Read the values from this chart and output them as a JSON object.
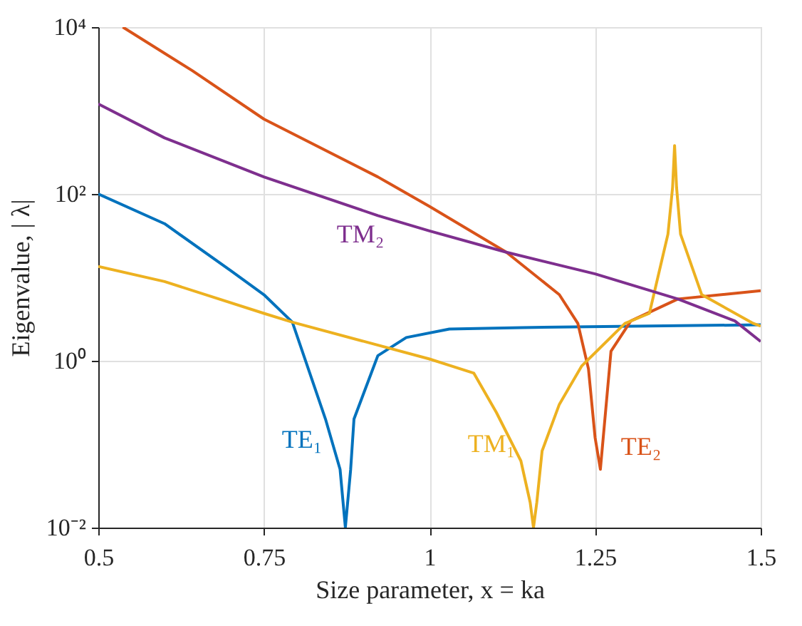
{
  "chart_data": {
    "type": "line",
    "xlabel": "Size parameter,  x = ka",
    "ylabel": "Eigenvalue,  | λ|",
    "xlim": [
      0.5,
      1.5
    ],
    "xticks": [
      0.5,
      0.75,
      1,
      1.25,
      1.5
    ],
    "ylim": [
      0.01,
      10000
    ],
    "yticks": [
      {
        "value": 10000,
        "label": "10⁴"
      },
      {
        "value": 100,
        "label": "10²"
      },
      {
        "value": 1,
        "label": "10⁰"
      },
      {
        "value": 0.01,
        "label": "10⁻²"
      }
    ],
    "log": "y",
    "grid": true,
    "legend": false,
    "marker": "none",
    "line_style": "solid",
    "series": [
      {
        "name": "TE₁",
        "color": "#0072bd",
        "x": [
          0.5,
          0.6,
          0.7,
          0.75,
          0.793,
          0.843,
          0.865,
          0.873,
          0.881,
          0.886,
          0.922,
          0.965,
          1.03,
          1.14,
          1.5
        ],
        "values": [
          100,
          44,
          12,
          6.2,
          2.9,
          0.2,
          0.05,
          0.01,
          0.05,
          0.2,
          1.15,
          1.9,
          2.4,
          2.5,
          2.7
        ]
      },
      {
        "name": "TE₂",
        "color": "#d95319",
        "x": [
          0.537,
          0.642,
          0.75,
          0.922,
          1.0,
          1.116,
          1.196,
          1.224,
          1.24,
          1.25,
          1.258,
          1.274,
          1.304,
          1.375,
          1.5
        ],
        "values": [
          10000,
          3000,
          790,
          160,
          71,
          20,
          6.2,
          2.8,
          0.8,
          0.12,
          0.05,
          1.3,
          3.0,
          5.5,
          6.9
        ]
      },
      {
        "name": "TM₁",
        "color": "#edb120",
        "x": [
          0.5,
          0.6,
          0.75,
          0.793,
          1.0,
          1.067,
          1.101,
          1.138,
          1.152,
          1.157,
          1.162,
          1.17,
          1.196,
          1.23,
          1.295,
          1.332,
          1.36,
          1.367,
          1.37,
          1.373,
          1.379,
          1.411,
          1.489,
          1.5
        ],
        "values": [
          13.5,
          8.9,
          3.7,
          2.9,
          1.05,
          0.71,
          0.24,
          0.063,
          0.02,
          0.01,
          0.02,
          0.083,
          0.3,
          0.87,
          2.8,
          3.7,
          33,
          120,
          380,
          120,
          33,
          6.2,
          2.8,
          2.6
        ]
      },
      {
        "name": "TM₂",
        "color": "#7e2f8e",
        "x": [
          0.5,
          0.6,
          0.75,
          0.922,
          1.0,
          1.116,
          1.25,
          1.375,
          1.461,
          1.5
        ],
        "values": [
          1200,
          470,
          160,
          55,
          36,
          20,
          11,
          5.5,
          3.0,
          1.7
        ]
      }
    ]
  }
}
